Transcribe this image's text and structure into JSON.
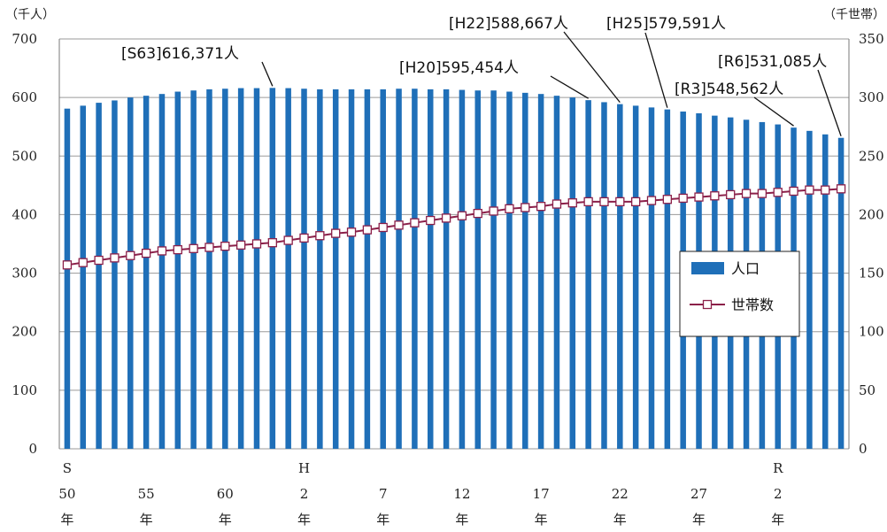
{
  "chart_data": {
    "type": "bar",
    "left_unit": "（千人）",
    "right_unit": "（千世帯）",
    "left_ylim": [
      0,
      700
    ],
    "right_ylim": [
      0,
      350
    ],
    "left_ticks": [
      "0",
      "100",
      "200",
      "300",
      "400",
      "500",
      "600",
      "700"
    ],
    "right_ticks": [
      "0",
      "50",
      "100",
      "150",
      "200",
      "250",
      "300",
      "350"
    ],
    "grid": true,
    "x": [
      "S50",
      "S51",
      "S52",
      "S53",
      "S54",
      "S55",
      "S56",
      "S57",
      "S58",
      "S59",
      "S60",
      "S61",
      "S62",
      "S63",
      "H1",
      "H2",
      "H3",
      "H4",
      "H5",
      "H6",
      "H7",
      "H8",
      "H9",
      "H10",
      "H11",
      "H12",
      "H13",
      "H14",
      "H15",
      "H16",
      "H17",
      "H18",
      "H19",
      "H20",
      "H21",
      "H22",
      "H23",
      "H24",
      "H25",
      "H26",
      "H27",
      "H28",
      "H29",
      "H30",
      "R1",
      "R2",
      "R3",
      "R4",
      "R5",
      "R6"
    ],
    "x_tick_labels": [
      {
        "index": 0,
        "lines": [
          "S",
          "50",
          "年"
        ]
      },
      {
        "index": 5,
        "lines": [
          "",
          "55",
          "年"
        ]
      },
      {
        "index": 10,
        "lines": [
          "",
          "60",
          "年"
        ]
      },
      {
        "index": 15,
        "lines": [
          "H",
          "2",
          "年"
        ]
      },
      {
        "index": 20,
        "lines": [
          "",
          "7",
          "年"
        ]
      },
      {
        "index": 25,
        "lines": [
          "",
          "12",
          "年"
        ]
      },
      {
        "index": 30,
        "lines": [
          "",
          "17",
          "年"
        ]
      },
      {
        "index": 35,
        "lines": [
          "",
          "22",
          "年"
        ]
      },
      {
        "index": 40,
        "lines": [
          "",
          "27",
          "年"
        ]
      },
      {
        "index": 45,
        "lines": [
          "R",
          "2",
          "年"
        ]
      }
    ],
    "series": [
      {
        "name": "人口",
        "kind": "bar",
        "axis": "left",
        "color": "#1f6fb8",
        "values": [
          581,
          586,
          591,
          595,
          600,
          603,
          606,
          610,
          612,
          614,
          615,
          616,
          616,
          616.371,
          616,
          615,
          614,
          614,
          614,
          614,
          614,
          615,
          615,
          614,
          614,
          613,
          612,
          612,
          610,
          608,
          606,
          603,
          600,
          595.454,
          592,
          588.667,
          586,
          583,
          579.591,
          576,
          573,
          569,
          566,
          562,
          558,
          554,
          548.562,
          543,
          537,
          531.085
        ]
      },
      {
        "name": "世帯数",
        "kind": "line",
        "axis": "right",
        "color": "#8b2049",
        "marker_fill": "#ffffff",
        "values": [
          157,
          159,
          161,
          163,
          165,
          167,
          169,
          170,
          171,
          172,
          173,
          174,
          175,
          176,
          178,
          180,
          182,
          184,
          185,
          187,
          189,
          191,
          193,
          195,
          197,
          199,
          201,
          203,
          205,
          206,
          207,
          209,
          210,
          211,
          211,
          211,
          211,
          212,
          213,
          214,
          215,
          216,
          217,
          218,
          218,
          219,
          220,
          221,
          221,
          222
        ]
      }
    ],
    "legend": {
      "placement": "center-right"
    },
    "annotations": [
      {
        "index": 13,
        "text": "[S63]616,371人"
      },
      {
        "index": 33,
        "text": "[H20]595,454人"
      },
      {
        "index": 35,
        "text": "[H22]588,667人"
      },
      {
        "index": 38,
        "text": "[H25]579,591人"
      },
      {
        "index": 46,
        "text": "[R3]548,562人"
      },
      {
        "index": 49,
        "text": "[R6]531,085人"
      }
    ]
  }
}
